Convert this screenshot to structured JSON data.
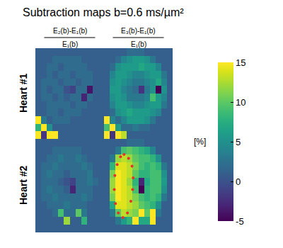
{
  "chart_data": {
    "type": "heatmap",
    "title": "Subtraction maps b=0.6 ms/µm²",
    "color": "Viridis",
    "tick_labels": false,
    "xlim": [
      -0.5,
      11.5
    ],
    "ylim": [
      11.5,
      -0.5
    ],
    "columns": [
      {
        "numerator": "E₂(b)-E₁(b)",
        "denominator": "E₁(b)"
      },
      {
        "numerator": "E₃(b)-E₁(b)",
        "denominator": "E₁(b)"
      }
    ],
    "rows": [
      "Heart #1",
      "Heart #2"
    ],
    "colorbar": {
      "range": [
        -5,
        15
      ],
      "ticks": [
        -5,
        0,
        5,
        10,
        15
      ],
      "label": "[%]"
    },
    "panels": [
      [
        {
          "z": [
            [
              1,
              1,
              1,
              1,
              1,
              1,
              1,
              1,
              1,
              1,
              1,
              1
            ],
            [
              1,
              1,
              1,
              2,
              2,
              2,
              2,
              2,
              1,
              1,
              1,
              1
            ],
            [
              1,
              1,
              2,
              2,
              1,
              2,
              2,
              2,
              2,
              1,
              1,
              1
            ],
            [
              1,
              1,
              2,
              1,
              2,
              2,
              1,
              2,
              2,
              2,
              1,
              1
            ],
            [
              1,
              2,
              2,
              2,
              1,
              2,
              2,
              1,
              2,
              2,
              1,
              1
            ],
            [
              1,
              2,
              1,
              2,
              2,
              0,
              -1,
              2,
              2,
              -4,
              1,
              1
            ],
            [
              1,
              2,
              2,
              1,
              2,
              1,
              2,
              2,
              -3,
              2,
              1,
              1
            ],
            [
              1,
              1,
              2,
              2,
              2,
              2,
              1,
              2,
              2,
              1,
              1,
              1
            ],
            [
              1,
              1,
              2,
              2,
              1,
              2,
              2,
              2,
              1,
              1,
              1,
              1
            ],
            [
              15,
              3,
              1,
              2,
              2,
              2,
              1,
              1,
              1,
              1,
              1,
              1
            ],
            [
              8,
              15,
              5,
              1,
              1,
              1,
              1,
              1,
              1,
              1,
              1,
              1
            ],
            [
              15,
              -2,
              15,
              15,
              1,
              1,
              1,
              1,
              1,
              1,
              1,
              1
            ]
          ]
        },
        {
          "z": [
            [
              1,
              1,
              1,
              1,
              2,
              2,
              2,
              1,
              1,
              1,
              1,
              1
            ],
            [
              1,
              1,
              2,
              4,
              5,
              6,
              6,
              5,
              3,
              1,
              1,
              1
            ],
            [
              1,
              2,
              5,
              6,
              6,
              6,
              7,
              6,
              6,
              4,
              1,
              1
            ],
            [
              1,
              4,
              6,
              6,
              5,
              4,
              4,
              5,
              6,
              6,
              3,
              1
            ],
            [
              1,
              5,
              6,
              5,
              4,
              3,
              3,
              4,
              5,
              7,
              4,
              1
            ],
            [
              1,
              6,
              6,
              4,
              3,
              2,
              -2,
              3,
              5,
              -5,
              5,
              1
            ],
            [
              1,
              5,
              6,
              5,
              3,
              3,
              3,
              4,
              9,
              6,
              4,
              1
            ],
            [
              1,
              4,
              6,
              6,
              5,
              4,
              4,
              5,
              6,
              6,
              3,
              1
            ],
            [
              1,
              2,
              5,
              6,
              7,
              6,
              6,
              6,
              5,
              4,
              1,
              1
            ],
            [
              15,
              4,
              2,
              4,
              6,
              6,
              6,
              5,
              3,
              1,
              1,
              1
            ],
            [
              9,
              15,
              6,
              2,
              2,
              3,
              2,
              2,
              1,
              1,
              1,
              1
            ],
            [
              15,
              -2,
              15,
              13,
              1,
              1,
              1,
              1,
              1,
              1,
              1,
              1
            ]
          ]
        }
      ],
      [
        {
          "z": [
            [
              1,
              1,
              1,
              1,
              1,
              1,
              1,
              1,
              1,
              1,
              1,
              1
            ],
            [
              1,
              1,
              1,
              2,
              2,
              2,
              2,
              2,
              1,
              1,
              1,
              1
            ],
            [
              1,
              1,
              2,
              2,
              3,
              2,
              2,
              3,
              2,
              1,
              1,
              1
            ],
            [
              1,
              2,
              2,
              3,
              2,
              2,
              2,
              2,
              3,
              2,
              1,
              1
            ],
            [
              1,
              2,
              3,
              2,
              2,
              1,
              2,
              2,
              2,
              3,
              1,
              1
            ],
            [
              1,
              2,
              2,
              2,
              1,
              0,
              -1,
              2,
              2,
              3,
              2,
              1
            ],
            [
              1,
              2,
              3,
              2,
              2,
              1,
              -3,
              2,
              2,
              2,
              1,
              1
            ],
            [
              1,
              2,
              2,
              3,
              2,
              2,
              2,
              2,
              3,
              2,
              1,
              1
            ],
            [
              1,
              1,
              2,
              2,
              2,
              3,
              2,
              2,
              2,
              1,
              1,
              1
            ],
            [
              1,
              1,
              1,
              2,
              9,
              2,
              2,
              10,
              3,
              1,
              1,
              1
            ],
            [
              1,
              1,
              1,
              1,
              1,
              12,
              1,
              1,
              8,
              1,
              1,
              1
            ],
            [
              1,
              1,
              1,
              1,
              1,
              1,
              1,
              1,
              1,
              1,
              1,
              1
            ]
          ]
        },
        {
          "z": [
            [
              1,
              1,
              1,
              1,
              2,
              2,
              2,
              1,
              1,
              1,
              1,
              1
            ],
            [
              1,
              1,
              3,
              9,
              10,
              9,
              8,
              7,
              4,
              1,
              1,
              1
            ],
            [
              1,
              3,
              12,
              13,
              12,
              10,
              9,
              9,
              8,
              5,
              1,
              1
            ],
            [
              1,
              8,
              14,
              14,
              13,
              11,
              9,
              8,
              9,
              8,
              3,
              1
            ],
            [
              1,
              11,
              15,
              14,
              13,
              10,
              8,
              8,
              9,
              9,
              5,
              1
            ],
            [
              1,
              12,
              15,
              14,
              12,
              8,
              -3,
              7,
              9,
              9,
              6,
              1
            ],
            [
              1,
              12,
              15,
              14,
              13,
              9,
              -5,
              8,
              9,
              9,
              5,
              1
            ],
            [
              1,
              11,
              15,
              14,
              13,
              11,
              9,
              8,
              9,
              8,
              3,
              1
            ],
            [
              1,
              7,
              14,
              14,
              13,
              12,
              10,
              9,
              8,
              5,
              1,
              1
            ],
            [
              1,
              3,
              10,
              13,
              12,
              11,
              15,
              10,
              15,
              3,
              1,
              1
            ],
            [
              1,
              1,
              3,
              6,
              8,
              15,
              7,
              7,
              15,
              1,
              1,
              1
            ],
            [
              1,
              1,
              1,
              1,
              1,
              1,
              1,
              1,
              1,
              1,
              1,
              1
            ]
          ],
          "roi": {
            "color": "#e8302a",
            "marker": "circle",
            "x": [
              3,
              3.8,
              4.4,
              4.6,
              4.5,
              4.2,
              3.6,
              2.8,
              2,
              1.5,
              1.3,
              1.4,
              1.8,
              2.4
            ],
            "y": [
              1.5,
              2,
              3,
              4.5,
              6,
              7.5,
              9,
              9.6,
              9,
              7.8,
              6,
              4.2,
              2.8,
              1.8
            ]
          }
        }
      ]
    ]
  }
}
